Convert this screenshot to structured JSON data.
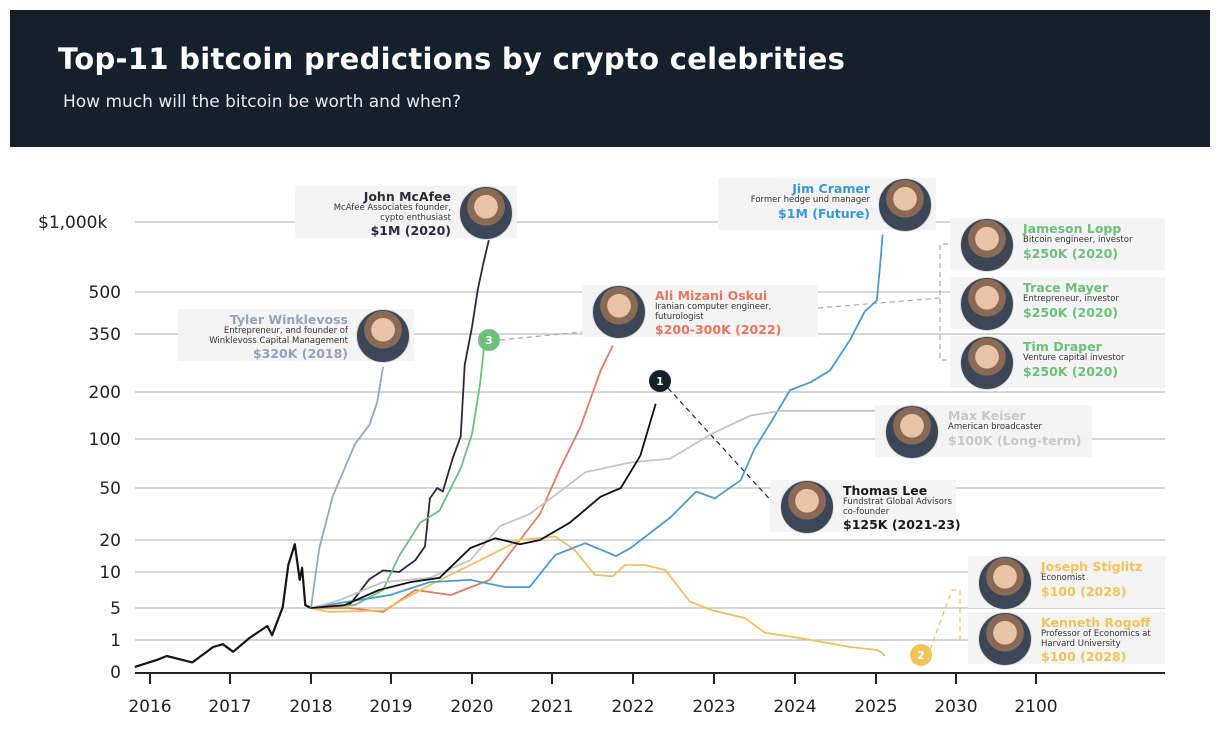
{
  "header": {
    "title": "Top-11 bitcoin predictions by crypto celebrities",
    "subtitle": "How much will the bitcoin be worth and when?"
  },
  "chart_data": {
    "type": "line",
    "title": "Top-11 bitcoin predictions by crypto celebrities",
    "subtitle": "How much will the bitcoin be worth and when?",
    "xlabel": "",
    "ylabel": "",
    "x_ticks": [
      "2016",
      "2017",
      "2018",
      "2019",
      "2020",
      "2021",
      "2022",
      "2023",
      "2024",
      "2025",
      "2030",
      "2100"
    ],
    "y_unit": "thousand USD",
    "y_scale": "non-uniform (compressed, approx. logarithmic)",
    "y_ticks": [
      {
        "value": 0,
        "label": "0"
      },
      {
        "value": 1,
        "label": "1"
      },
      {
        "value": 5,
        "label": "5"
      },
      {
        "value": 10,
        "label": "10"
      },
      {
        "value": 20,
        "label": "20"
      },
      {
        "value": 50,
        "label": "50"
      },
      {
        "value": 100,
        "label": "100"
      },
      {
        "value": 200,
        "label": "200"
      },
      {
        "value": 350,
        "label": "350"
      },
      {
        "value": 500,
        "label": "500"
      },
      {
        "value": 1000,
        "label": "$1,000k"
      }
    ],
    "grid": "horizontal",
    "series": [
      {
        "key": "historical",
        "color": "#151515",
        "points": [
          [
            2015.81,
            0.16
          ],
          [
            2016.09,
            0.38
          ],
          [
            2016.21,
            0.5
          ],
          [
            2016.53,
            0.3
          ],
          [
            2016.79,
            0.78
          ],
          [
            2016.91,
            0.87
          ],
          [
            2017.04,
            0.63
          ],
          [
            2017.24,
            1.25
          ],
          [
            2017.46,
            2.75
          ],
          [
            2017.52,
            1.6
          ],
          [
            2017.65,
            5.1
          ],
          [
            2017.72,
            12.2
          ],
          [
            2017.8,
            18.7
          ],
          [
            2017.86,
            8.9
          ],
          [
            2017.89,
            11.3
          ],
          [
            2017.93,
            5.4
          ],
          [
            2018.0,
            5
          ]
        ]
      },
      {
        "key": "winklevoss",
        "color": "#94a6c2",
        "points": [
          [
            2018,
            5
          ],
          [
            2018.1,
            17
          ],
          [
            2018.27,
            45
          ],
          [
            2018.55,
            95
          ],
          [
            2018.73,
            130
          ],
          [
            2018.83,
            180
          ],
          [
            2018.9,
            265
          ]
        ]
      },
      {
        "key": "mcafee",
        "color": "#2a2a3a",
        "points": [
          [
            2018,
            5
          ],
          [
            2018.48,
            5.4
          ],
          [
            2018.73,
            9
          ],
          [
            2018.9,
            10.5
          ],
          [
            2019.1,
            10
          ],
          [
            2019.3,
            13.7
          ],
          [
            2019.42,
            18
          ],
          [
            2019.48,
            44
          ],
          [
            2019.57,
            50
          ],
          [
            2019.64,
            48
          ],
          [
            2019.76,
            80
          ],
          [
            2019.86,
            105
          ],
          [
            2019.91,
            270
          ],
          [
            2020.0,
            375
          ],
          [
            2020.07,
            510
          ],
          [
            2020.14,
            700
          ],
          [
            2020.21,
            870
          ]
        ]
      },
      {
        "key": "lopp-mayer-draper",
        "color": "#6cc07a",
        "points": [
          [
            2018,
            5
          ],
          [
            2018.55,
            5.4
          ],
          [
            2018.9,
            7.5
          ],
          [
            2019.1,
            15
          ],
          [
            2019.36,
            30
          ],
          [
            2019.6,
            37
          ],
          [
            2019.86,
            70
          ],
          [
            2020.0,
            110
          ],
          [
            2020.1,
            220
          ],
          [
            2020.16,
            335
          ]
        ]
      },
      {
        "key": "oskui",
        "color": "#e77b62",
        "points": [
          [
            2018,
            5
          ],
          [
            2018.48,
            5
          ],
          [
            2018.9,
            4.5
          ],
          [
            2019.3,
            7.5
          ],
          [
            2019.74,
            6.8
          ],
          [
            2020.22,
            8.9
          ],
          [
            2020.6,
            20
          ],
          [
            2020.85,
            35
          ],
          [
            2021.1,
            70
          ],
          [
            2021.35,
            125
          ],
          [
            2021.6,
            255
          ],
          [
            2021.75,
            320
          ]
        ]
      },
      {
        "key": "stiglitz-rogoff",
        "color": "#f0c060",
        "points": [
          [
            2018,
            5
          ],
          [
            2018.23,
            4.5
          ],
          [
            2018.9,
            4.7
          ],
          [
            2019.48,
            8.2
          ],
          [
            2020.1,
            13.7
          ],
          [
            2020.6,
            20
          ],
          [
            2021.04,
            22
          ],
          [
            2021.28,
            16.9
          ],
          [
            2021.53,
            9.6
          ],
          [
            2021.75,
            9.4
          ],
          [
            2021.9,
            12.2
          ],
          [
            2022.15,
            12.2
          ],
          [
            2022.4,
            10.6
          ],
          [
            2022.7,
            5.9
          ],
          [
            2022.98,
            4.7
          ],
          [
            2023.38,
            3.75
          ],
          [
            2023.63,
            1.9
          ],
          [
            2024.06,
            1.25
          ],
          [
            2024.68,
            0.78
          ],
          [
            2025.05,
            0.69
          ],
          [
            2025.36,
            0.6
          ],
          [
            2025.55,
            0.5
          ]
        ]
      },
      {
        "key": "cramer",
        "color": "#4a9bd0",
        "points": [
          [
            2018,
            5
          ],
          [
            2018.36,
            5.7
          ],
          [
            2018.99,
            6.8
          ],
          [
            2019.48,
            8.6
          ],
          [
            2019.98,
            8.9
          ],
          [
            2020.42,
            7.9
          ],
          [
            2020.72,
            7.9
          ],
          [
            2021.04,
            15.3
          ],
          [
            2021.41,
            19
          ],
          [
            2021.79,
            15
          ],
          [
            2021.97,
            17.5
          ],
          [
            2022.46,
            33
          ],
          [
            2022.78,
            48
          ],
          [
            2023.01,
            44
          ],
          [
            2023.33,
            58
          ],
          [
            2023.5,
            90
          ],
          [
            2023.7,
            135
          ],
          [
            2023.94,
            205
          ],
          [
            2024.19,
            225
          ],
          [
            2024.43,
            255
          ],
          [
            2024.68,
            335
          ],
          [
            2024.86,
            430
          ],
          [
            2025.05,
            470
          ],
          [
            2025.23,
            660
          ],
          [
            2025.42,
            910
          ]
        ]
      },
      {
        "key": "keiser",
        "color": "#c4c4c4",
        "points": [
          [
            2018,
            5
          ],
          [
            2018.36,
            6.1
          ],
          [
            2018.9,
            8.6
          ],
          [
            2019.48,
            9.2
          ],
          [
            2019.98,
            13.7
          ],
          [
            2020.35,
            28
          ],
          [
            2020.72,
            35
          ],
          [
            2021.1,
            48
          ],
          [
            2021.41,
            66
          ],
          [
            2021.97,
            76
          ],
          [
            2022.46,
            80
          ],
          [
            2022.96,
            110
          ],
          [
            2023.45,
            150
          ],
          [
            2023.83,
            160
          ],
          [
            2024.43,
            160
          ],
          [
            2024.99,
            160
          ]
        ]
      },
      {
        "key": "thomas-lee",
        "color": "#111111",
        "points": [
          [
            2018,
            5
          ],
          [
            2018.42,
            5.4
          ],
          [
            2018.85,
            7.5
          ],
          [
            2019.24,
            8.6
          ],
          [
            2019.6,
            9.2
          ],
          [
            2019.98,
            17.5
          ],
          [
            2020.29,
            21
          ],
          [
            2020.6,
            18.7
          ],
          [
            2020.85,
            20
          ],
          [
            2021.22,
            30
          ],
          [
            2021.6,
            45
          ],
          [
            2021.85,
            50
          ],
          [
            2022.09,
            83
          ],
          [
            2022.28,
            175
          ]
        ]
      }
    ],
    "markers": [
      {
        "label": "1",
        "color": "#14202c"
      },
      {
        "label": "2",
        "color": "#f3c35a"
      },
      {
        "label": "3",
        "color": "#6cc07a"
      }
    ]
  },
  "people": [
    {
      "name": "John McAfee",
      "role": "McAfee Associates founder, cypto enthusiast",
      "prediction": "$1M (2020)",
      "color": "#2b2b3b"
    },
    {
      "name": "Tyler Winklevoss",
      "role": "Entrepreneur, and founder of Winklevoss Capital Management",
      "prediction": "$320K (2018)",
      "color": "#8fa4c4"
    },
    {
      "name": "Ali Mizani Oskui",
      "role": "Iranian computer engineer, futurologist",
      "prediction": "$200-300K (2022)",
      "color": "#e8765e"
    },
    {
      "name": "Jim Cramer",
      "role": "Former hedge und manager",
      "prediction": "$1M (Future)",
      "color": "#3d97d3"
    },
    {
      "name": "Jameson Lopp",
      "role": "Bitcoin engineer, investor",
      "prediction": "$250K (2020)",
      "color": "#6cc07a"
    },
    {
      "name": "Trace Mayer",
      "role": "Entrepreneur, investor",
      "prediction": "$250K (2020)",
      "color": "#6cc07a"
    },
    {
      "name": "Tim Draper",
      "role": "Venture capital investor",
      "prediction": "$250K (2020)",
      "color": "#6cc07a"
    },
    {
      "name": "Max Keiser",
      "role": "American broadcaster",
      "prediction": "$100K (Long-term)",
      "color": "#c8c8c8"
    },
    {
      "name": "Thomas Lee",
      "role": "Fundstrat Global Advisors co-founder",
      "prediction": "$125K (2021-23)",
      "color": "#1a1a1a"
    },
    {
      "name": "Joseph Stiglitz",
      "role": "Economist",
      "prediction": "$100 (2028)",
      "color": "#f3c35a"
    },
    {
      "name": "Kenneth Rogoff",
      "role": "Professor of Economics at Harvard University",
      "prediction": "$100 (2028)",
      "color": "#f3c35a"
    }
  ]
}
